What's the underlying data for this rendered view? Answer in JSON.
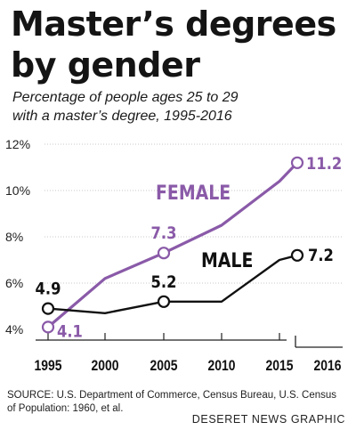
{
  "header": {
    "title_line1": "Master’s degrees",
    "title_line2": "by gender",
    "subtitle_line1": "Percentage of people ages 25 to 29",
    "subtitle_line2": "with a master’s degree, 1995-2016"
  },
  "footer": {
    "source_line1": "SOURCE: U.S. Department of Commerce, Census Bureau, U.S. Census",
    "source_line2": "of Population: 1960, et al.",
    "credit": "DESERET NEWS GRAPHIC"
  },
  "chart_data": {
    "type": "line",
    "x_ticks": [
      "1995",
      "2000",
      "2005",
      "2010",
      "2015",
      "2016"
    ],
    "y_ticks": [
      "4%",
      "6%",
      "8%",
      "10%",
      "12%"
    ],
    "ylim": [
      4,
      12
    ],
    "grid": true,
    "series": [
      {
        "name": "FEMALE",
        "color": "#8a5aa8",
        "points": [
          {
            "x": 1995,
            "y": 4.1,
            "label": "4.1",
            "marker": true
          },
          {
            "x": 2000,
            "y": 6.2
          },
          {
            "x": 2005,
            "y": 7.3,
            "label": "7.3",
            "marker": true
          },
          {
            "x": 2010,
            "y": 8.5
          },
          {
            "x": 2015,
            "y": 10.4
          },
          {
            "x": 2016,
            "y": 11.2,
            "label": "11.2",
            "marker": true
          }
        ]
      },
      {
        "name": "MALE",
        "color": "#111111",
        "points": [
          {
            "x": 1995,
            "y": 4.9,
            "label": "4.9",
            "marker": true
          },
          {
            "x": 2000,
            "y": 4.7
          },
          {
            "x": 2005,
            "y": 5.2,
            "label": "5.2",
            "marker": true
          },
          {
            "x": 2010,
            "y": 5.2
          },
          {
            "x": 2015,
            "y": 7.0
          },
          {
            "x": 2016,
            "y": 7.2,
            "label": "7.2",
            "marker": true
          }
        ]
      }
    ]
  }
}
